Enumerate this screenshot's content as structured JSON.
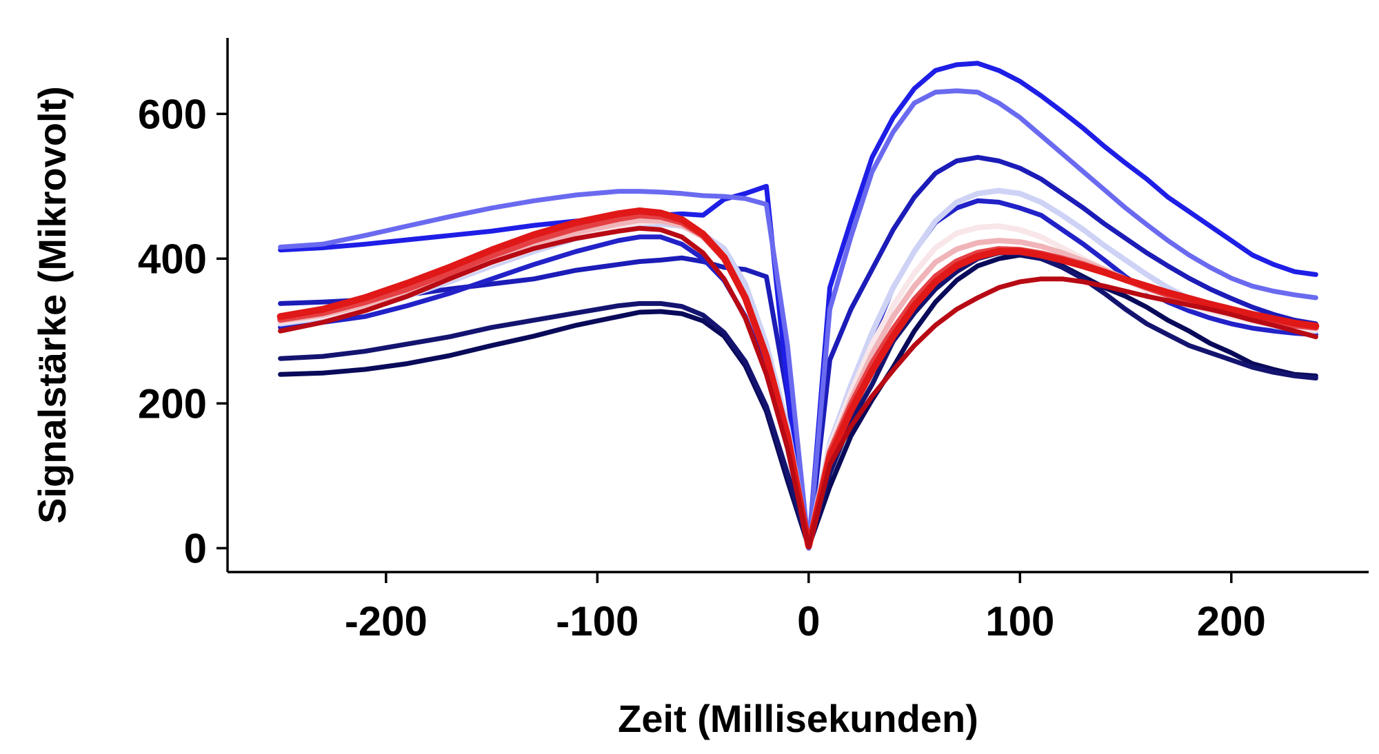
{
  "chart_data": {
    "type": "line",
    "title": "",
    "xlabel": "Zeit (Millisekunden)",
    "ylabel": "Signalstärke (Mikrovolt)",
    "xlim": [
      -275,
      265
    ],
    "ylim": [
      -33,
      705
    ],
    "xticks": [
      -200,
      -100,
      0,
      100,
      200
    ],
    "yticks": [
      0,
      200,
      400,
      600
    ],
    "grid": false,
    "legend": "none",
    "x": [
      -250,
      -230,
      -210,
      -190,
      -170,
      -150,
      -130,
      -110,
      -90,
      -80,
      -70,
      -60,
      -50,
      -40,
      -30,
      -20,
      -10,
      0,
      10,
      20,
      30,
      40,
      50,
      60,
      70,
      80,
      90,
      100,
      110,
      120,
      130,
      140,
      150,
      160,
      170,
      180,
      190,
      200,
      210,
      220,
      230,
      240
    ],
    "series": [
      {
        "color": "#0a0a5a",
        "width": 7,
        "values": [
          240,
          242,
          247,
          255,
          266,
          280,
          293,
          308,
          320,
          326,
          327,
          324,
          314,
          293,
          252,
          189,
          93,
          2,
          85,
          155,
          205,
          250,
          300,
          340,
          370,
          390,
          400,
          405,
          400,
          390,
          375,
          360,
          348,
          333,
          315,
          300,
          283,
          270,
          255,
          247,
          240,
          238
        ]
      },
      {
        "color": "#141470",
        "width": 7,
        "values": [
          262,
          265,
          272,
          282,
          292,
          305,
          315,
          325,
          335,
          338,
          338,
          334,
          322,
          298,
          258,
          196,
          103,
          3,
          103,
          175,
          226,
          286,
          325,
          358,
          382,
          400,
          408,
          407,
          400,
          388,
          372,
          352,
          330,
          310,
          295,
          280,
          270,
          260,
          250,
          243,
          238,
          235
        ]
      },
      {
        "color": "#1c1cb8",
        "width": 7,
        "values": [
          338,
          340,
          343,
          350,
          358,
          365,
          372,
          384,
          392,
          396,
          398,
          401,
          396,
          388,
          385,
          375,
          210,
          0,
          260,
          330,
          385,
          440,
          485,
          518,
          535,
          540,
          535,
          525,
          510,
          490,
          470,
          448,
          428,
          408,
          390,
          373,
          358,
          345,
          333,
          323,
          315,
          310
        ]
      },
      {
        "color": "#1e1ee6",
        "width": 7,
        "values": [
          412,
          415,
          420,
          426,
          432,
          438,
          446,
          452,
          456,
          458,
          460,
          462,
          460,
          482,
          490,
          500,
          220,
          0,
          360,
          452,
          540,
          595,
          635,
          660,
          668,
          670,
          660,
          645,
          625,
          603,
          580,
          555,
          532,
          510,
          485,
          465,
          445,
          425,
          405,
          392,
          382,
          378
        ]
      },
      {
        "color": "#6a6af0",
        "width": 7,
        "values": [
          416,
          420,
          432,
          445,
          458,
          470,
          480,
          488,
          493,
          493,
          492,
          490,
          487,
          486,
          483,
          475,
          280,
          0,
          330,
          430,
          520,
          575,
          615,
          630,
          632,
          630,
          615,
          595,
          570,
          545,
          520,
          495,
          470,
          447,
          425,
          405,
          388,
          373,
          362,
          355,
          350,
          346
        ]
      },
      {
        "color": "#2222c8",
        "width": 7,
        "values": [
          305,
          312,
          320,
          335,
          352,
          372,
          392,
          410,
          425,
          430,
          430,
          420,
          400,
          370,
          320,
          245,
          138,
          3,
          120,
          210,
          290,
          360,
          410,
          450,
          470,
          480,
          478,
          470,
          460,
          440,
          420,
          398,
          375,
          355,
          340,
          328,
          318,
          310,
          304,
          300,
          297,
          295
        ]
      },
      {
        "color": "#ced2f5",
        "width": 8,
        "values": [
          310,
          318,
          330,
          348,
          368,
          390,
          410,
          428,
          440,
          445,
          448,
          445,
          434,
          414,
          365,
          282,
          168,
          5,
          145,
          225,
          298,
          360,
          410,
          452,
          478,
          490,
          494,
          490,
          478,
          460,
          440,
          418,
          398,
          378,
          360,
          345,
          333,
          322,
          314,
          307,
          302,
          300
        ]
      },
      {
        "color": "#f8e6e8",
        "width": 8,
        "values": [
          312,
          320,
          333,
          350,
          372,
          394,
          414,
          432,
          445,
          450,
          452,
          448,
          434,
          404,
          348,
          268,
          158,
          4,
          140,
          215,
          282,
          335,
          380,
          415,
          435,
          443,
          445,
          440,
          430,
          415,
          400,
          385,
          370,
          356,
          345,
          335,
          327,
          320,
          313,
          308,
          304,
          302
        ]
      },
      {
        "color": "#f0b4b8",
        "width": 8,
        "values": [
          314,
          322,
          336,
          354,
          375,
          398,
          418,
          436,
          448,
          453,
          452,
          446,
          430,
          400,
          346,
          266,
          156,
          4,
          135,
          205,
          268,
          320,
          362,
          395,
          413,
          422,
          425,
          423,
          417,
          408,
          397,
          385,
          372,
          360,
          349,
          339,
          331,
          324,
          317,
          312,
          307,
          304
        ]
      },
      {
        "color": "#e44044",
        "width": 9,
        "values": [
          316,
          325,
          340,
          358,
          380,
          404,
          425,
          442,
          455,
          460,
          458,
          450,
          432,
          400,
          346,
          266,
          156,
          4,
          132,
          198,
          255,
          302,
          343,
          375,
          396,
          408,
          413,
          412,
          407,
          400,
          392,
          382,
          371,
          360,
          350,
          341,
          333,
          326,
          319,
          313,
          308,
          305
        ]
      },
      {
        "color": "#e01818",
        "width": 10,
        "values": [
          320,
          330,
          346,
          366,
          388,
          412,
          433,
          450,
          462,
          466,
          463,
          454,
          434,
          402,
          346,
          265,
          155,
          3,
          125,
          190,
          245,
          293,
          335,
          368,
          390,
          403,
          410,
          410,
          405,
          398,
          390,
          381,
          371,
          362,
          353,
          345,
          337,
          330,
          323,
          317,
          311,
          307
        ]
      },
      {
        "color": "#b80a14",
        "width": 7,
        "values": [
          300,
          312,
          328,
          348,
          372,
          395,
          414,
          428,
          438,
          442,
          440,
          430,
          408,
          372,
          318,
          240,
          138,
          2,
          115,
          168,
          210,
          246,
          280,
          308,
          330,
          346,
          360,
          368,
          372,
          372,
          368,
          362,
          355,
          348,
          342,
          336,
          330,
          323,
          315,
          308,
          300,
          292
        ]
      }
    ]
  }
}
